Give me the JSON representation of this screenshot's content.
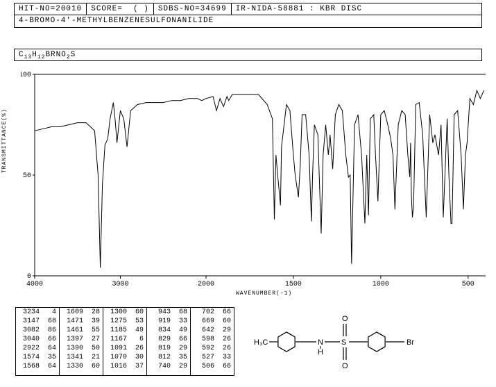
{
  "header": {
    "hit_no_label": "HIT-NO=",
    "hit_no": "20010",
    "score_label": "SCORE=",
    "score": "(   )",
    "sdbs_label": "SDBS-NO=",
    "sdbs": "34699",
    "ir_info": "IR-NIDA-58881 : KBR DISC"
  },
  "compound_name": "4-BROMO-4'-METHYLBENZENESULFONANILIDE",
  "formula_parts": [
    "C",
    "13",
    "H",
    "12",
    "BRNO",
    "2",
    "S"
  ],
  "chart": {
    "type": "line",
    "xlabel": "WAVENUMBER(-1)",
    "ylabel": "TRANSMITTANCE(%)",
    "xlim": [
      4000,
      400
    ],
    "ylim": [
      0,
      100
    ],
    "xticks": [
      4000,
      3000,
      2000,
      1500,
      1000,
      500
    ],
    "yticks": [
      0,
      50,
      100
    ],
    "background_color": "#ffffff",
    "line_color": "#000000",
    "axis_color": "#000000",
    "tick_fontsize": 10,
    "label_fontsize": 8,
    "line_width": 1,
    "spectrum": [
      [
        4000,
        72
      ],
      [
        3900,
        73
      ],
      [
        3800,
        74
      ],
      [
        3700,
        74
      ],
      [
        3600,
        75
      ],
      [
        3500,
        76
      ],
      [
        3400,
        76
      ],
      [
        3300,
        72
      ],
      [
        3260,
        50
      ],
      [
        3234,
        4
      ],
      [
        3210,
        45
      ],
      [
        3180,
        65
      ],
      [
        3147,
        68
      ],
      [
        3120,
        78
      ],
      [
        3082,
        86
      ],
      [
        3060,
        77
      ],
      [
        3040,
        66
      ],
      [
        3000,
        82
      ],
      [
        2960,
        78
      ],
      [
        2922,
        64
      ],
      [
        2880,
        82
      ],
      [
        2800,
        85
      ],
      [
        2700,
        86
      ],
      [
        2600,
        86
      ],
      [
        2500,
        86
      ],
      [
        2400,
        87
      ],
      [
        2300,
        87
      ],
      [
        2200,
        88
      ],
      [
        2100,
        88
      ],
      [
        2050,
        87
      ],
      [
        2000,
        88
      ],
      [
        1960,
        89
      ],
      [
        1940,
        82
      ],
      [
        1920,
        88
      ],
      [
        1900,
        84
      ],
      [
        1880,
        89
      ],
      [
        1870,
        87
      ],
      [
        1850,
        90
      ],
      [
        1800,
        90
      ],
      [
        1750,
        90
      ],
      [
        1700,
        90
      ],
      [
        1650,
        85
      ],
      [
        1620,
        78
      ],
      [
        1609,
        28
      ],
      [
        1600,
        60
      ],
      [
        1590,
        50
      ],
      [
        1574,
        35
      ],
      [
        1568,
        64
      ],
      [
        1540,
        85
      ],
      [
        1520,
        82
      ],
      [
        1500,
        60
      ],
      [
        1490,
        50
      ],
      [
        1471,
        39
      ],
      [
        1461,
        55
      ],
      [
        1450,
        80
      ],
      [
        1430,
        80
      ],
      [
        1410,
        60
      ],
      [
        1397,
        27
      ],
      [
        1390,
        50
      ],
      [
        1380,
        75
      ],
      [
        1360,
        70
      ],
      [
        1341,
        21
      ],
      [
        1330,
        60
      ],
      [
        1315,
        75
      ],
      [
        1300,
        60
      ],
      [
        1290,
        70
      ],
      [
        1275,
        53
      ],
      [
        1260,
        80
      ],
      [
        1240,
        85
      ],
      [
        1220,
        82
      ],
      [
        1200,
        60
      ],
      [
        1185,
        49
      ],
      [
        1175,
        50
      ],
      [
        1167,
        6
      ],
      [
        1150,
        75
      ],
      [
        1130,
        80
      ],
      [
        1110,
        60
      ],
      [
        1091,
        26
      ],
      [
        1080,
        60
      ],
      [
        1070,
        30
      ],
      [
        1060,
        78
      ],
      [
        1040,
        80
      ],
      [
        1030,
        60
      ],
      [
        1016,
        37
      ],
      [
        1000,
        80
      ],
      [
        980,
        82
      ],
      [
        960,
        75
      ],
      [
        943,
        68
      ],
      [
        930,
        60
      ],
      [
        919,
        33
      ],
      [
        900,
        75
      ],
      [
        880,
        82
      ],
      [
        860,
        80
      ],
      [
        845,
        60
      ],
      [
        834,
        49
      ],
      [
        829,
        66
      ],
      [
        825,
        40
      ],
      [
        819,
        29
      ],
      [
        812,
        35
      ],
      [
        800,
        85
      ],
      [
        780,
        86
      ],
      [
        760,
        70
      ],
      [
        740,
        29
      ],
      [
        720,
        80
      ],
      [
        702,
        66
      ],
      [
        690,
        70
      ],
      [
        669,
        60
      ],
      [
        655,
        75
      ],
      [
        642,
        29
      ],
      [
        620,
        78
      ],
      [
        610,
        50
      ],
      [
        598,
        26
      ],
      [
        592,
        26
      ],
      [
        580,
        80
      ],
      [
        560,
        82
      ],
      [
        540,
        60
      ],
      [
        527,
        33
      ],
      [
        515,
        60
      ],
      [
        506,
        66
      ],
      [
        490,
        88
      ],
      [
        470,
        85
      ],
      [
        450,
        92
      ],
      [
        430,
        88
      ],
      [
        410,
        92
      ]
    ]
  },
  "peak_table": [
    [
      [
        3234,
        4
      ],
      [
        3147,
        68
      ],
      [
        3082,
        86
      ],
      [
        3040,
        66
      ],
      [
        2922,
        64
      ],
      [
        1574,
        35
      ],
      [
        1568,
        64
      ]
    ],
    [
      [
        1609,
        28
      ],
      [
        1471,
        39
      ],
      [
        1461,
        55
      ],
      [
        1397,
        27
      ],
      [
        1390,
        50
      ],
      [
        1341,
        21
      ],
      [
        1330,
        60
      ]
    ],
    [
      [
        1300,
        60
      ],
      [
        1275,
        53
      ],
      [
        1185,
        49
      ],
      [
        1167,
        6
      ],
      [
        1091,
        26
      ],
      [
        1070,
        30
      ],
      [
        1016,
        37
      ]
    ],
    [
      [
        943,
        68
      ],
      [
        919,
        33
      ],
      [
        834,
        49
      ],
      [
        829,
        66
      ],
      [
        819,
        29
      ],
      [
        812,
        35
      ],
      [
        740,
        29
      ]
    ],
    [
      [
        702,
        66
      ],
      [
        669,
        60
      ],
      [
        642,
        29
      ],
      [
        598,
        26
      ],
      [
        592,
        26
      ],
      [
        527,
        33
      ],
      [
        506,
        66
      ]
    ]
  ],
  "structure": {
    "labels": {
      "ch3": "H₃C",
      "nh": "N",
      "h": "H",
      "s": "S",
      "o1": "O",
      "o2": "O",
      "br": "Br"
    },
    "line_color": "#000000"
  }
}
